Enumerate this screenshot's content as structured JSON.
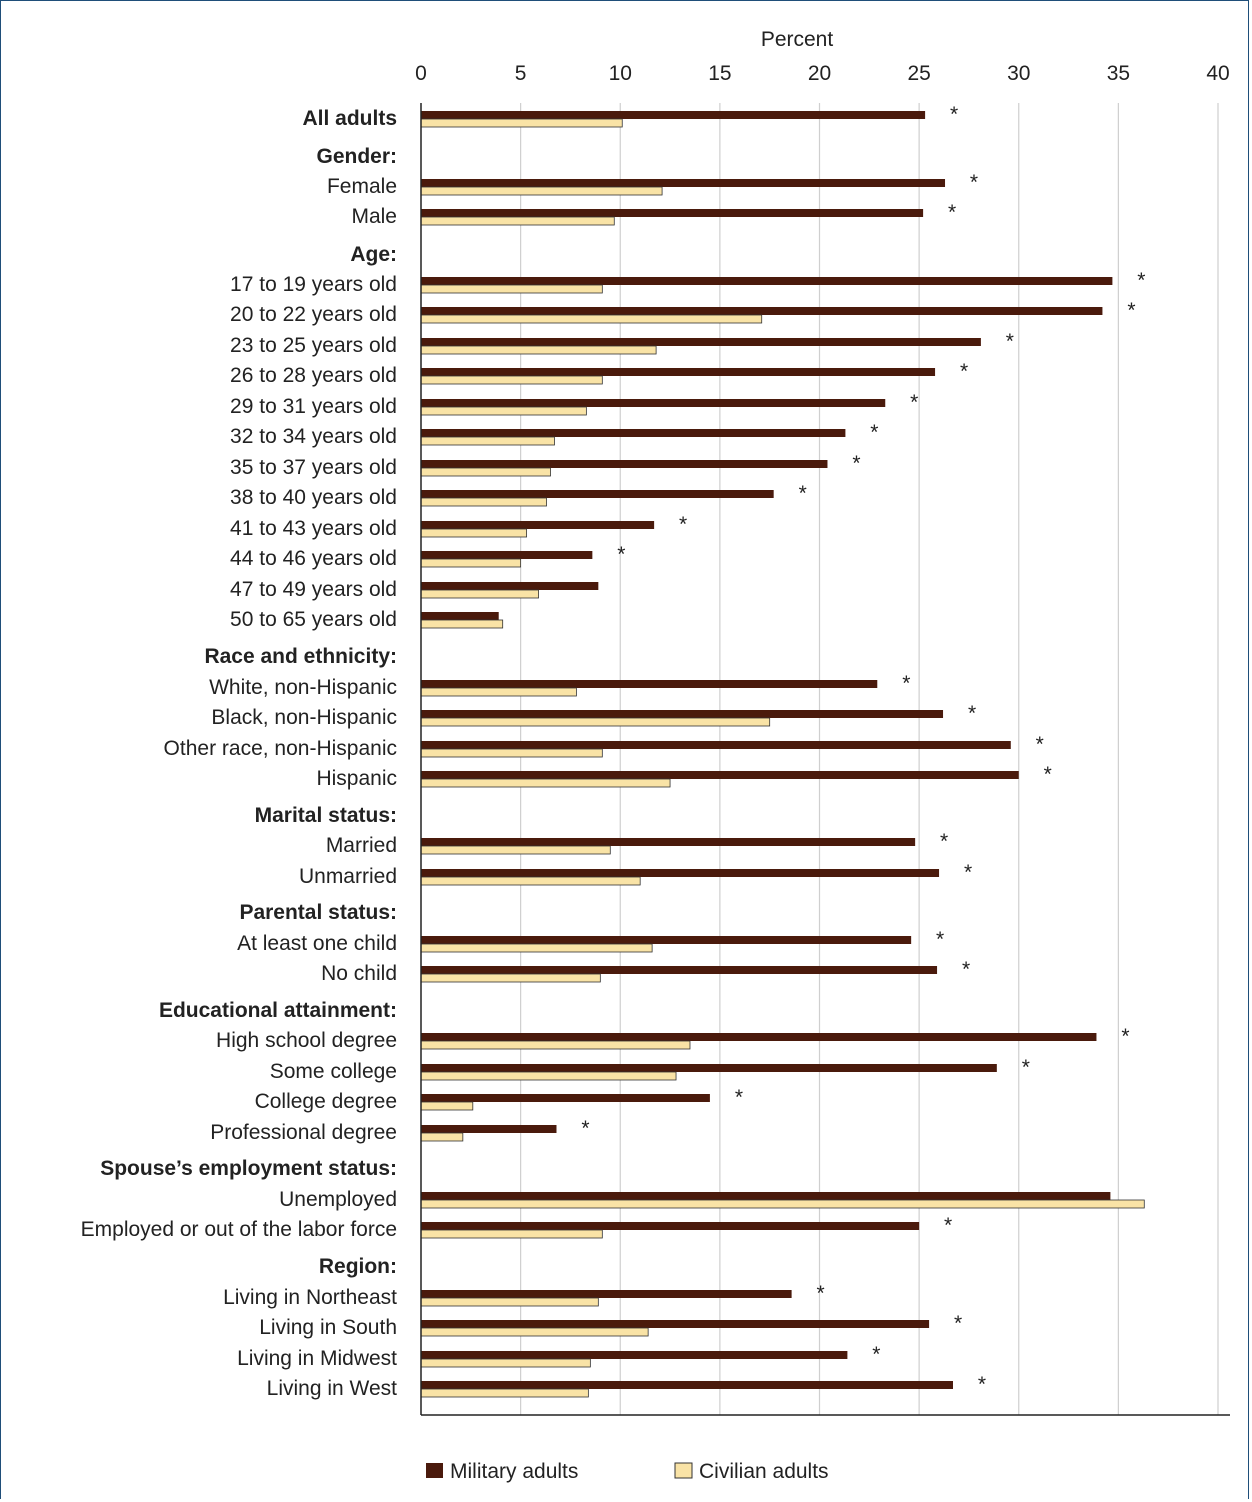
{
  "chart_data": {
    "type": "bar",
    "orientation": "horizontal",
    "xlabel": "Percent",
    "xlim": [
      0,
      40
    ],
    "xticks": [
      0,
      5,
      10,
      15,
      20,
      25,
      30,
      35,
      40
    ],
    "grid": true,
    "legend_position": "bottom",
    "series": [
      {
        "name": "Military adults",
        "color": "#4a1a0c"
      },
      {
        "name": "Civilian adults",
        "color": "#f9e3a6"
      }
    ],
    "significance_marker": "*",
    "rows": [
      {
        "label": "All adults",
        "bold": true,
        "military": 25.3,
        "civilian": 10.1,
        "sig": true
      },
      {
        "label": "Gender:",
        "header": true
      },
      {
        "label": "Female",
        "military": 26.3,
        "civilian": 12.1,
        "sig": true
      },
      {
        "label": "Male",
        "military": 25.2,
        "civilian": 9.7,
        "sig": true
      },
      {
        "label": "Age:",
        "header": true
      },
      {
        "label": "17 to 19 years old",
        "military": 34.7,
        "civilian": 9.1,
        "sig": true
      },
      {
        "label": "20 to 22 years old",
        "military": 34.2,
        "civilian": 17.1,
        "sig": true
      },
      {
        "label": "23 to 25 years old",
        "military": 28.1,
        "civilian": 11.8,
        "sig": true
      },
      {
        "label": "26 to 28 years old",
        "military": 25.8,
        "civilian": 9.1,
        "sig": true
      },
      {
        "label": "29 to 31 years old",
        "military": 23.3,
        "civilian": 8.3,
        "sig": true
      },
      {
        "label": "32 to 34 years old",
        "military": 21.3,
        "civilian": 6.7,
        "sig": true
      },
      {
        "label": "35 to 37 years old",
        "military": 20.4,
        "civilian": 6.5,
        "sig": true
      },
      {
        "label": "38 to 40 years old",
        "military": 17.7,
        "civilian": 6.3,
        "sig": true
      },
      {
        "label": "41 to 43 years old",
        "military": 11.7,
        "civilian": 5.3,
        "sig": true
      },
      {
        "label": "44 to 46 years old",
        "military": 8.6,
        "civilian": 5.0,
        "sig": true
      },
      {
        "label": "47 to 49 years old",
        "military": 8.9,
        "civilian": 5.9,
        "sig": false
      },
      {
        "label": "50 to 65 years old",
        "military": 3.9,
        "civilian": 4.1,
        "sig": false
      },
      {
        "label": "Race and ethnicity:",
        "header": true
      },
      {
        "label": "White, non-Hispanic",
        "military": 22.9,
        "civilian": 7.8,
        "sig": true
      },
      {
        "label": "Black, non-Hispanic",
        "military": 26.2,
        "civilian": 17.5,
        "sig": true
      },
      {
        "label": "Other race, non-Hispanic",
        "military": 29.6,
        "civilian": 9.1,
        "sig": true
      },
      {
        "label": "Hispanic",
        "military": 30.0,
        "civilian": 12.5,
        "sig": true
      },
      {
        "label": "Marital status:",
        "header": true
      },
      {
        "label": "Married",
        "military": 24.8,
        "civilian": 9.5,
        "sig": true
      },
      {
        "label": "Unmarried",
        "military": 26.0,
        "civilian": 11.0,
        "sig": true
      },
      {
        "label": "Parental status:",
        "header": true
      },
      {
        "label": "At least one child",
        "military": 24.6,
        "civilian": 11.6,
        "sig": true
      },
      {
        "label": "No child",
        "military": 25.9,
        "civilian": 9.0,
        "sig": true
      },
      {
        "label": "Educational attainment:",
        "header": true
      },
      {
        "label": "High school degree",
        "military": 33.9,
        "civilian": 13.5,
        "sig": true
      },
      {
        "label": "Some college",
        "military": 28.9,
        "civilian": 12.8,
        "sig": true
      },
      {
        "label": "College degree",
        "military": 14.5,
        "civilian": 2.6,
        "sig": true
      },
      {
        "label": "Professional degree",
        "military": 6.8,
        "civilian": 2.1,
        "sig": true
      },
      {
        "label": "Spouse’s employment status:",
        "header": true
      },
      {
        "label": "Unemployed",
        "military": 34.6,
        "civilian": 36.3,
        "sig": false
      },
      {
        "label": "Employed or out of the labor force",
        "military": 25.0,
        "civilian": 9.1,
        "sig": true
      },
      {
        "label": "Region:",
        "header": true
      },
      {
        "label": "Living in Northeast",
        "military": 18.6,
        "civilian": 8.9,
        "sig": true
      },
      {
        "label": "Living in South",
        "military": 25.5,
        "civilian": 11.4,
        "sig": true
      },
      {
        "label": "Living in Midwest",
        "military": 21.4,
        "civilian": 8.5,
        "sig": true
      },
      {
        "label": "Living in West",
        "military": 26.7,
        "civilian": 8.4,
        "sig": true
      }
    ]
  }
}
